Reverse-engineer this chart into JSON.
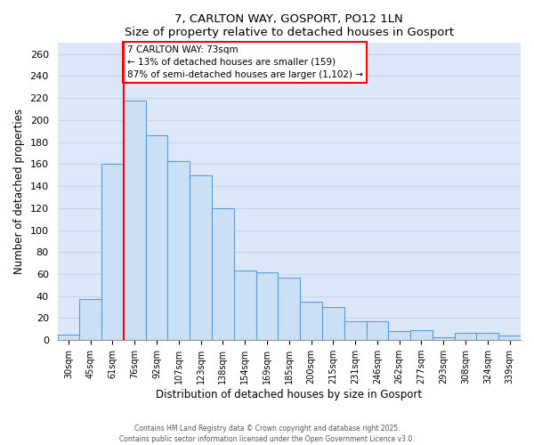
{
  "title": "7, CARLTON WAY, GOSPORT, PO12 1LN",
  "subtitle": "Size of property relative to detached houses in Gosport",
  "xlabel": "Distribution of detached houses by size in Gosport",
  "ylabel": "Number of detached properties",
  "categories": [
    "30sqm",
    "45sqm",
    "61sqm",
    "76sqm",
    "92sqm",
    "107sqm",
    "123sqm",
    "138sqm",
    "154sqm",
    "169sqm",
    "185sqm",
    "200sqm",
    "215sqm",
    "231sqm",
    "246sqm",
    "262sqm",
    "277sqm",
    "293sqm",
    "308sqm",
    "324sqm",
    "339sqm"
  ],
  "values": [
    5,
    37,
    160,
    218,
    186,
    163,
    150,
    120,
    63,
    62,
    57,
    35,
    30,
    17,
    17,
    8,
    9,
    3,
    7,
    7,
    4
  ],
  "bar_color": "#cce0f5",
  "bar_edge_color": "#5b9bd5",
  "vline_x_index": 3,
  "vline_color": "red",
  "annotation_line1": "7 CARLTON WAY: 73sqm",
  "annotation_line2": "← 13% of detached houses are smaller (159)",
  "annotation_line3": "87% of semi-detached houses are larger (1,102) →",
  "annotation_box_color": "white",
  "annotation_box_edge_color": "red",
  "ylim": [
    0,
    270
  ],
  "yticks": [
    0,
    20,
    40,
    60,
    80,
    100,
    120,
    140,
    160,
    180,
    200,
    220,
    240,
    260
  ],
  "footer1": "Contains HM Land Registry data © Crown copyright and database right 2025.",
  "footer2": "Contains public sector information licensed under the Open Government Licence v3.0.",
  "bg_color": "#e8f0fb",
  "grid_color": "#c8d4e8",
  "plot_bg": "#dce8f8"
}
